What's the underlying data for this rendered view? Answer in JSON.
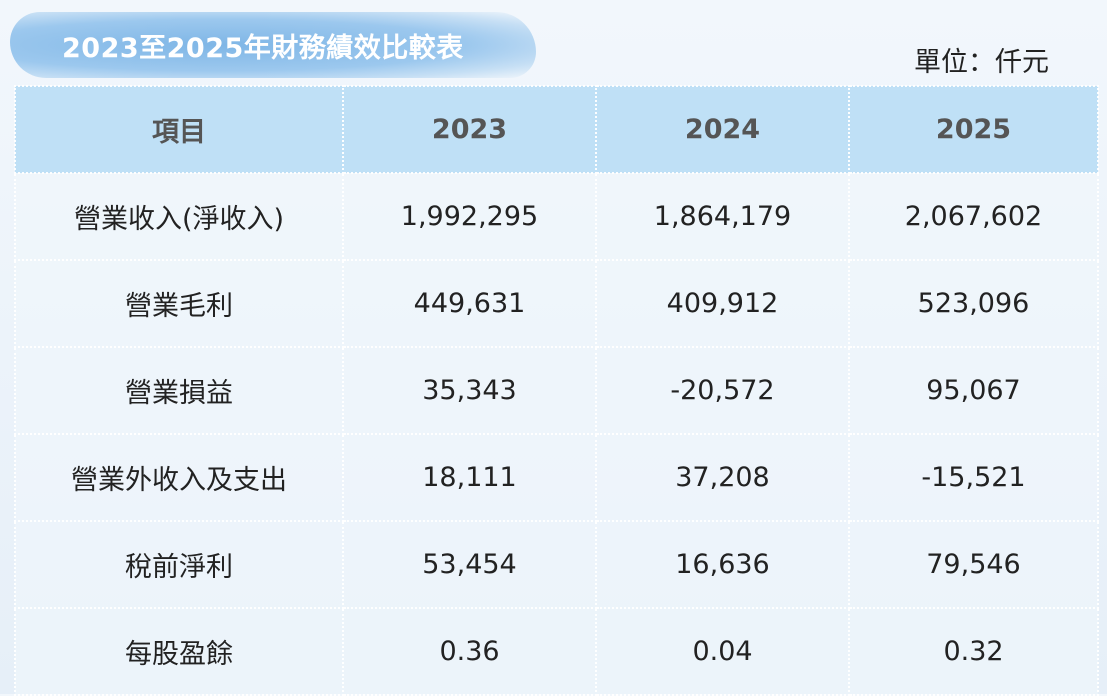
{
  "header": {
    "title": "2023至2025年財務績效比較表",
    "unit": "單位：仟元"
  },
  "table": {
    "columns": [
      "項目",
      "2023",
      "2024",
      "2025"
    ],
    "rows": [
      [
        "營業收入(淨收入)",
        "1,992,295",
        "1,864,179",
        "2,067,602"
      ],
      [
        "營業毛利",
        "449,631",
        "409,912",
        "523,096"
      ],
      [
        "營業損益",
        "35,343",
        "-20,572",
        "95,067"
      ],
      [
        "營業外收入及支出",
        "18,111",
        "37,208",
        "-15,521"
      ],
      [
        "稅前淨利",
        "53,454",
        "16,636",
        "79,546"
      ],
      [
        "每股盈餘",
        "0.36",
        "0.04",
        "0.32"
      ]
    ]
  }
}
